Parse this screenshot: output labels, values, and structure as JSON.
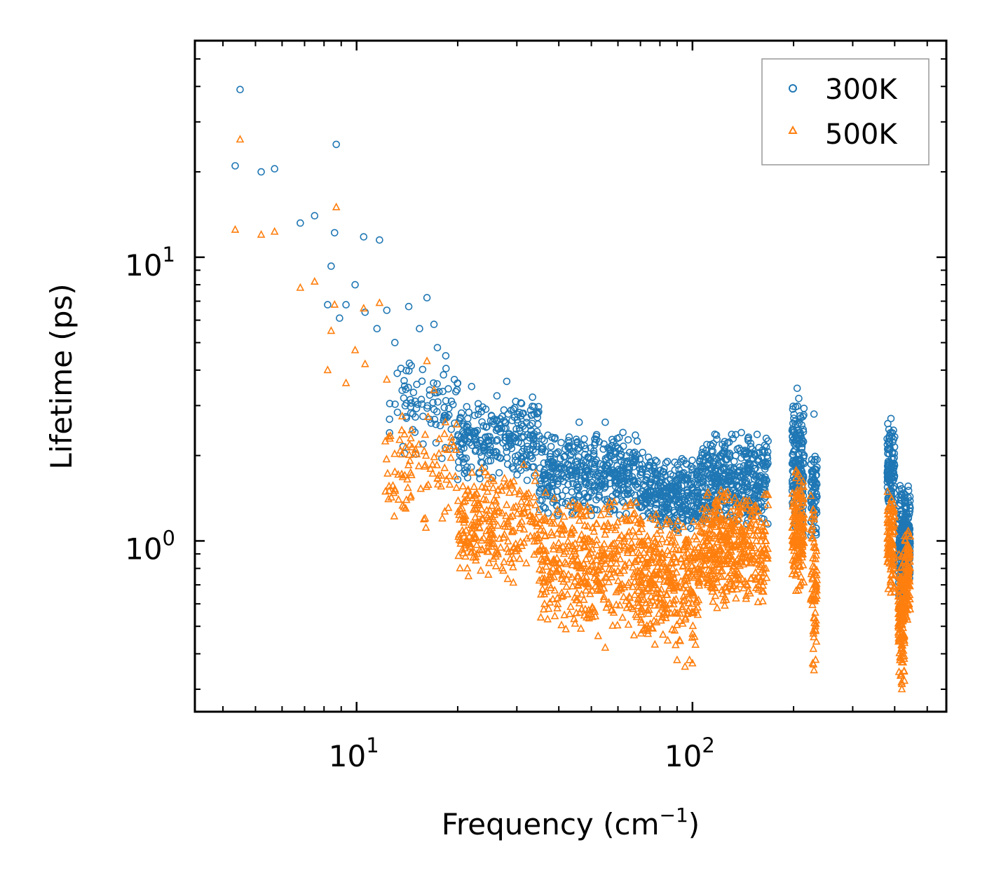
{
  "chart_data": {
    "type": "scatter",
    "xscale": "log",
    "yscale": "log",
    "xlim": [
      3.3,
      570
    ],
    "ylim": [
      0.25,
      58
    ],
    "xlabel": "Frequency (cm",
    "xlabel_superscript": "−1",
    "xlabel_suffix": ")",
    "ylabel": "Lifetime (ps)",
    "x_major_ticks": [
      {
        "value": 10,
        "base": "10",
        "exp": "1"
      },
      {
        "value": 100,
        "base": "10",
        "exp": "2"
      }
    ],
    "y_major_ticks": [
      {
        "value": 1,
        "base": "10",
        "exp": "0"
      },
      {
        "value": 10,
        "base": "10",
        "exp": "1"
      }
    ],
    "legend_position": "top-right",
    "series": [
      {
        "name": "300K",
        "marker": "circle",
        "color": "#1f77b4",
        "highlights": [
          [
            4.5,
            39
          ],
          [
            4.35,
            21
          ],
          [
            5.2,
            20
          ],
          [
            5.7,
            20.5
          ],
          [
            8.7,
            25
          ],
          [
            6.8,
            13.2
          ],
          [
            7.5,
            14
          ],
          [
            8.6,
            12.2
          ],
          [
            10.5,
            11.8
          ],
          [
            11.7,
            11.5
          ],
          [
            8.4,
            9.3
          ],
          [
            9.9,
            8
          ],
          [
            8.2,
            6.8
          ],
          [
            9.3,
            6.8
          ],
          [
            10.6,
            6.4
          ],
          [
            12.3,
            6.5
          ],
          [
            14.3,
            6.7
          ],
          [
            16.2,
            7.2
          ],
          [
            8.9,
            6.1
          ],
          [
            11.5,
            5.6
          ],
          [
            15.4,
            5.6
          ],
          [
            17,
            5.8
          ],
          [
            13,
            5
          ],
          [
            17.4,
            4.8
          ],
          [
            20,
            3.6
          ],
          [
            22,
            3.5
          ],
          [
            28,
            3.65
          ],
          [
            31,
            3.05
          ],
          [
            46,
            2.62
          ],
          [
            55,
            2.62
          ],
          [
            65,
            2.05
          ],
          [
            71,
            2.05
          ],
          [
            75,
            1.9
          ],
          [
            205,
            3.45
          ],
          [
            230,
            2.8
          ],
          [
            390,
            2.7
          ]
        ],
        "clusters": [
          {
            "xmin": 12.5,
            "xmax": 20,
            "ymin": 1.8,
            "ymax": 5.0,
            "n": 90
          },
          {
            "xmin": 20,
            "xmax": 35,
            "ymin": 1.6,
            "ymax": 3.3,
            "n": 260
          },
          {
            "xmin": 35,
            "xmax": 70,
            "ymin": 1.2,
            "ymax": 2.5,
            "n": 420
          },
          {
            "xmin": 70,
            "xmax": 105,
            "ymin": 1.05,
            "ymax": 2.0,
            "n": 320
          },
          {
            "xmin": 105,
            "xmax": 168,
            "ymin": 1.1,
            "ymax": 2.5,
            "n": 420
          },
          {
            "xmin": 198,
            "xmax": 215,
            "ymin": 1.0,
            "ymax": 3.4,
            "n": 160
          },
          {
            "xmin": 225,
            "xmax": 235,
            "ymin": 0.95,
            "ymax": 2.3,
            "n": 70
          },
          {
            "xmin": 380,
            "xmax": 400,
            "ymin": 1.2,
            "ymax": 2.7,
            "n": 110
          },
          {
            "xmin": 410,
            "xmax": 428,
            "ymin": 0.55,
            "ymax": 1.6,
            "n": 130
          },
          {
            "xmin": 428,
            "xmax": 445,
            "ymin": 0.7,
            "ymax": 1.6,
            "n": 110
          }
        ]
      },
      {
        "name": "500K",
        "marker": "triangle",
        "color": "#ff7f0e",
        "highlights": [
          [
            4.5,
            26
          ],
          [
            4.35,
            12.5
          ],
          [
            5.2,
            12
          ],
          [
            5.7,
            12.3
          ],
          [
            8.7,
            15
          ],
          [
            6.8,
            7.8
          ],
          [
            7.5,
            8.2
          ],
          [
            8.6,
            6.8
          ],
          [
            10.5,
            6.6
          ],
          [
            11.7,
            6.9
          ],
          [
            8.4,
            5.5
          ],
          [
            9.9,
            4.7
          ],
          [
            8.2,
            4.0
          ],
          [
            9.3,
            3.6
          ],
          [
            10.6,
            4.2
          ],
          [
            12.3,
            3.7
          ],
          [
            16.2,
            4.3
          ],
          [
            17,
            3.4
          ],
          [
            14.5,
            2.3
          ],
          [
            13,
            1.75
          ],
          [
            12.5,
            1.5
          ],
          [
            14,
            1.3
          ],
          [
            16,
            1.2
          ],
          [
            18,
            1.2
          ],
          [
            55,
            0.42
          ],
          [
            90,
            0.38
          ],
          [
            95,
            0.36
          ],
          [
            98,
            0.38
          ],
          [
            100,
            0.37
          ],
          [
            230,
            0.35
          ],
          [
            420,
            0.3
          ]
        ],
        "clusters": [
          {
            "xmin": 12,
            "xmax": 20,
            "ymin": 1.1,
            "ymax": 3.0,
            "n": 90
          },
          {
            "xmin": 20,
            "xmax": 35,
            "ymin": 0.7,
            "ymax": 1.9,
            "n": 260
          },
          {
            "xmin": 35,
            "xmax": 70,
            "ymin": 0.45,
            "ymax": 1.5,
            "n": 420
          },
          {
            "xmin": 70,
            "xmax": 105,
            "ymin": 0.4,
            "ymax": 1.3,
            "n": 320
          },
          {
            "xmin": 105,
            "xmax": 168,
            "ymin": 0.55,
            "ymax": 1.6,
            "n": 420
          },
          {
            "xmin": 198,
            "xmax": 215,
            "ymin": 0.62,
            "ymax": 1.95,
            "n": 160
          },
          {
            "xmin": 225,
            "xmax": 235,
            "ymin": 0.35,
            "ymax": 1.6,
            "n": 70
          },
          {
            "xmin": 380,
            "xmax": 400,
            "ymin": 0.62,
            "ymax": 1.6,
            "n": 110
          },
          {
            "xmin": 410,
            "xmax": 428,
            "ymin": 0.3,
            "ymax": 1.0,
            "n": 130
          },
          {
            "xmin": 428,
            "xmax": 445,
            "ymin": 0.5,
            "ymax": 1.1,
            "n": 110
          }
        ]
      }
    ]
  }
}
